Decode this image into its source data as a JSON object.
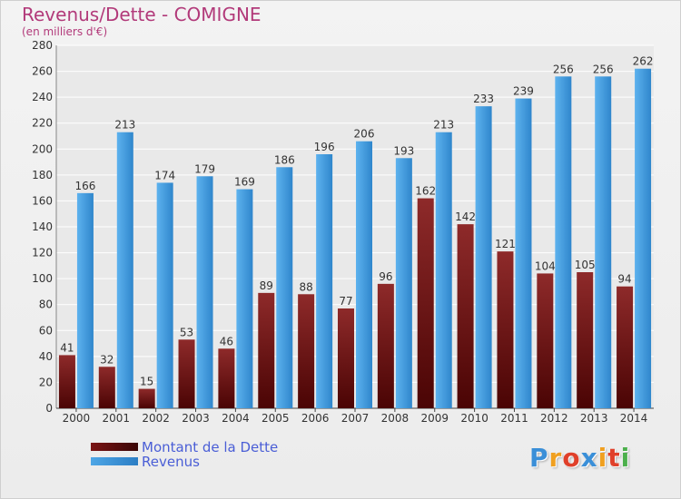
{
  "chart_data": {
    "type": "bar",
    "title": "Revenus/Dette - COMIGNE",
    "subtitle": "(en milliers d'€)",
    "categories": [
      "2000",
      "2001",
      "2002",
      "2003",
      "2004",
      "2005",
      "2006",
      "2007",
      "2008",
      "2009",
      "2010",
      "2011",
      "2012",
      "2013",
      "2014"
    ],
    "series": [
      {
        "name": "Montant de la Dette",
        "color": "#7a1414",
        "values": [
          41,
          32,
          15,
          53,
          46,
          89,
          88,
          77,
          96,
          162,
          142,
          121,
          104,
          105,
          94
        ],
        "labels": [
          "41",
          "32",
          "15",
          "53",
          "46",
          "89",
          "88",
          "77",
          "96",
          "162",
          "142",
          "121",
          "104",
          "105",
          "94"
        ]
      },
      {
        "name": "Revenus",
        "color": "#4ea6e6",
        "values": [
          166,
          213,
          174,
          179,
          169,
          186,
          196,
          206,
          193,
          213,
          233,
          239,
          256,
          256,
          262
        ],
        "labels": [
          "166",
          "213",
          "174",
          "179",
          "169",
          "186",
          "196",
          "206",
          "193",
          "213",
          "233",
          "239",
          "256",
          "256",
          "262"
        ]
      }
    ],
    "ylim": [
      0,
      280
    ],
    "yticks": [
      "0",
      "20",
      "40",
      "60",
      "80",
      "100",
      "120",
      "140",
      "160",
      "180",
      "200",
      "220",
      "240",
      "260",
      "280"
    ],
    "grid": true,
    "legend_position": "bottom-left"
  },
  "legend": {
    "debt_label": "Montant de la Dette",
    "revenue_label": "Revenus",
    "debt_color": "#7a1414",
    "revenue_color": "#4ea6e6"
  },
  "logo": {
    "letters": [
      "P",
      "r",
      "o",
      "x",
      "i",
      "t",
      "i"
    ],
    "colors": [
      "#3a8fd8",
      "#f0a020",
      "#e0402a",
      "#3a8fd8",
      "#f0a020",
      "#e0402a",
      "#4cb04c"
    ]
  }
}
